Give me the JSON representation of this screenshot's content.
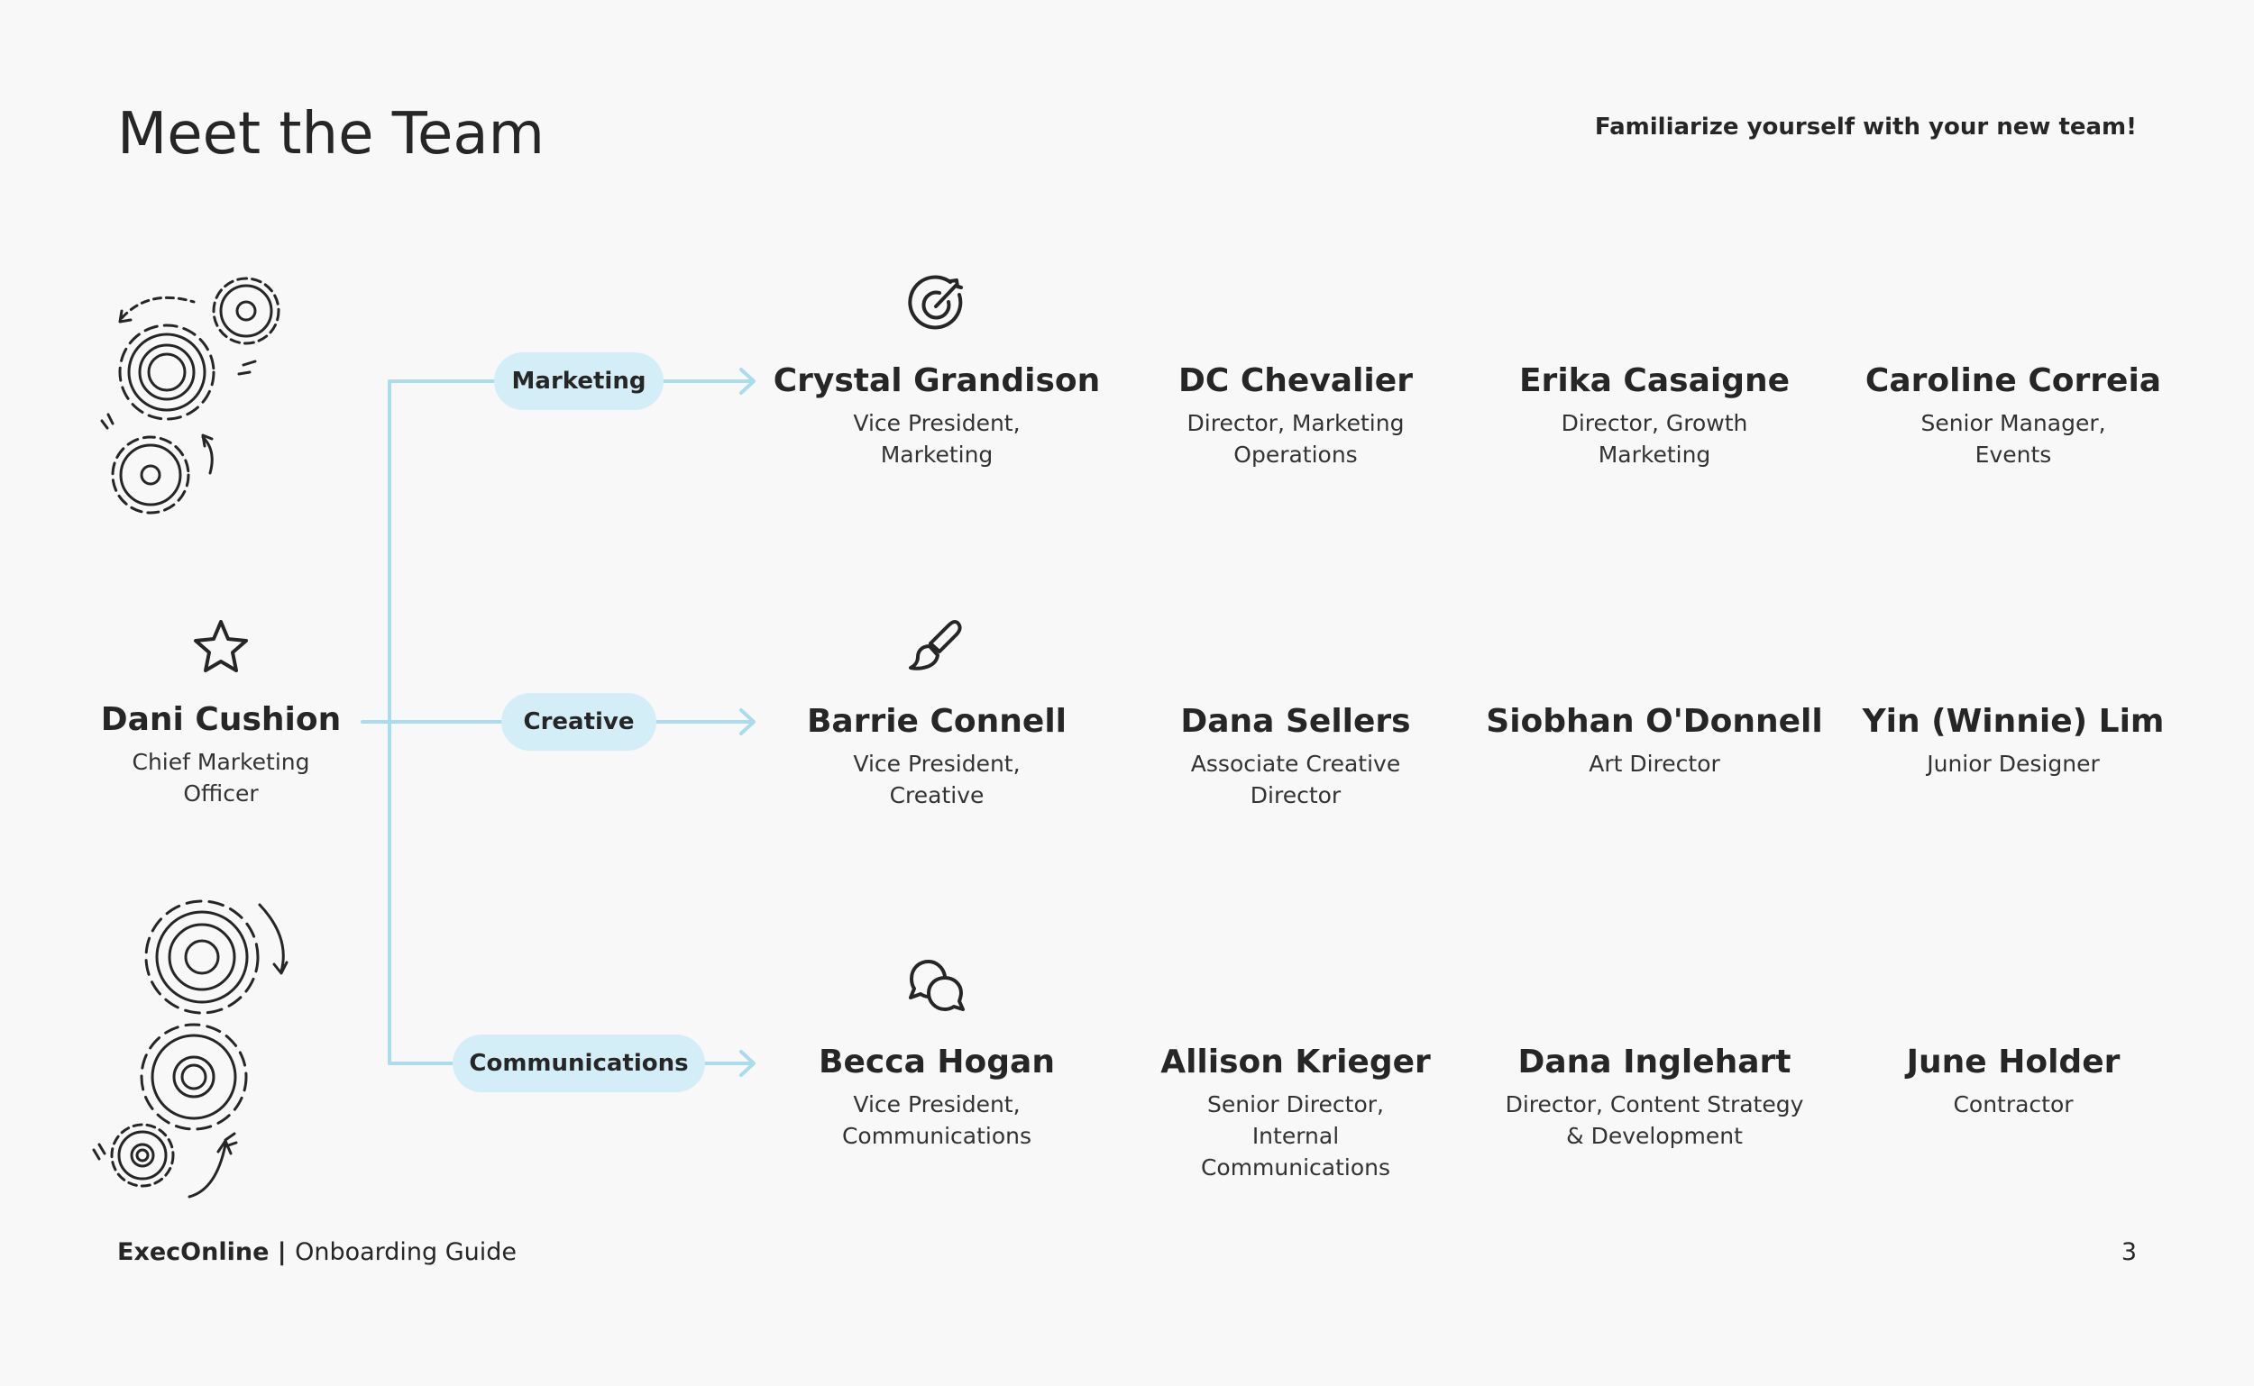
{
  "header": {
    "title": "Meet the Team",
    "subtitle": "Familiarize yourself with your new team!"
  },
  "leader": {
    "name": "Dani Cushion",
    "role": "Chief Marketing Officer",
    "icon": "star-icon"
  },
  "departments": [
    {
      "label": "Marketing",
      "icon": "target-icon",
      "members": [
        {
          "name": "Crystal Grandison",
          "role": "Vice President, Marketing"
        },
        {
          "name": "DC Chevalier",
          "role": "Director, Marketing Operations"
        },
        {
          "name": "Erika Casaigne",
          "role": "Director, Growth Marketing"
        },
        {
          "name": "Caroline Correia",
          "role": "Senior Manager, Events"
        }
      ]
    },
    {
      "label": "Creative",
      "icon": "paintbrush-icon",
      "members": [
        {
          "name": "Barrie Connell",
          "role": "Vice President, Creative"
        },
        {
          "name": "Dana Sellers",
          "role": "Associate Creative Director"
        },
        {
          "name": "Siobhan O'Donnell",
          "role": "Art Director"
        },
        {
          "name": "Yin (Winnie) Lim",
          "role": "Junior Designer"
        }
      ]
    },
    {
      "label": "Communications",
      "icon": "chat-bubbles-icon",
      "members": [
        {
          "name": "Becca Hogan",
          "role": "Vice President, Communications"
        },
        {
          "name": "Allison Krieger",
          "role": "Senior Director, Internal Communications"
        },
        {
          "name": "Dana Inglehart",
          "role": "Director, Content Strategy & Development"
        },
        {
          "name": "June Holder",
          "role": "Contractor"
        }
      ]
    }
  ],
  "footer": {
    "brand": "ExecOnline",
    "separator": " | ",
    "doc": "Onboarding Guide",
    "page": "3"
  },
  "colors": {
    "background": "#f8f8f8",
    "text": "#262626",
    "accent_line": "#a9dcee",
    "pill_fill": "#d3eef7"
  }
}
